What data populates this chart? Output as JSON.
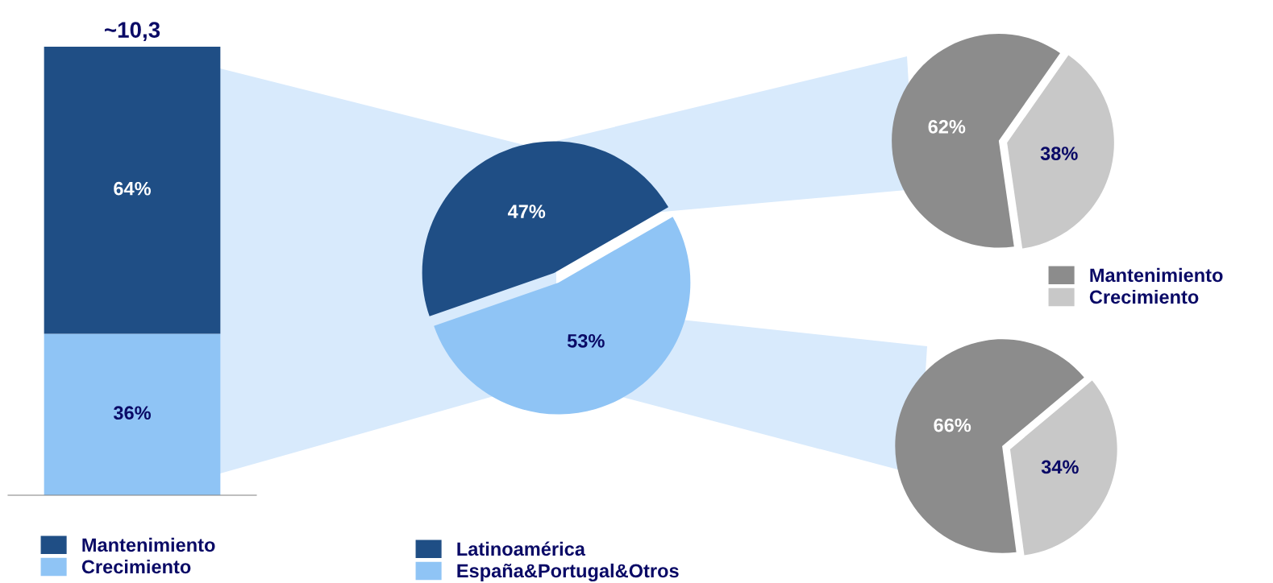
{
  "chart_data": [
    {
      "type": "bar",
      "stacked": true,
      "categories": [
        null
      ],
      "legend": "bottom left",
      "ylim": [
        0,
        100
      ],
      "tick_labels": false,
      "annotations": [
        "~10,3"
      ],
      "series": [
        {
          "name": "Crecimiento",
          "color": "#8fc4f5",
          "values": [
            36
          ],
          "value_labels": [
            "36%"
          ]
        },
        {
          "name": "Mantenimiento",
          "color": "#1f4e85",
          "values": [
            64
          ],
          "value_labels": [
            "64%"
          ]
        }
      ]
    },
    {
      "type": "pie",
      "categories": [
        "Latinoamérica",
        "España&Portugal&Otros"
      ],
      "values": [
        47,
        53
      ],
      "colors": [
        "#1f4e85",
        "#8fc4f5"
      ],
      "value_labels": [
        "47%",
        "53%"
      ],
      "legend": "bottom"
    },
    {
      "type": "pie",
      "categories": [
        "Mantenimiento",
        "Crecimiento"
      ],
      "values": [
        62,
        38
      ],
      "colors": [
        "#8c8c8c",
        "#c8c8c8"
      ],
      "value_labels": [
        "62%",
        "38%"
      ],
      "legend": "bottom"
    },
    {
      "type": "pie",
      "categories": [
        null,
        null
      ],
      "values": [
        66,
        34
      ],
      "colors": [
        "#8c8c8c",
        "#c8c8c8"
      ],
      "value_labels": [
        "66%",
        "34%"
      ]
    }
  ]
}
